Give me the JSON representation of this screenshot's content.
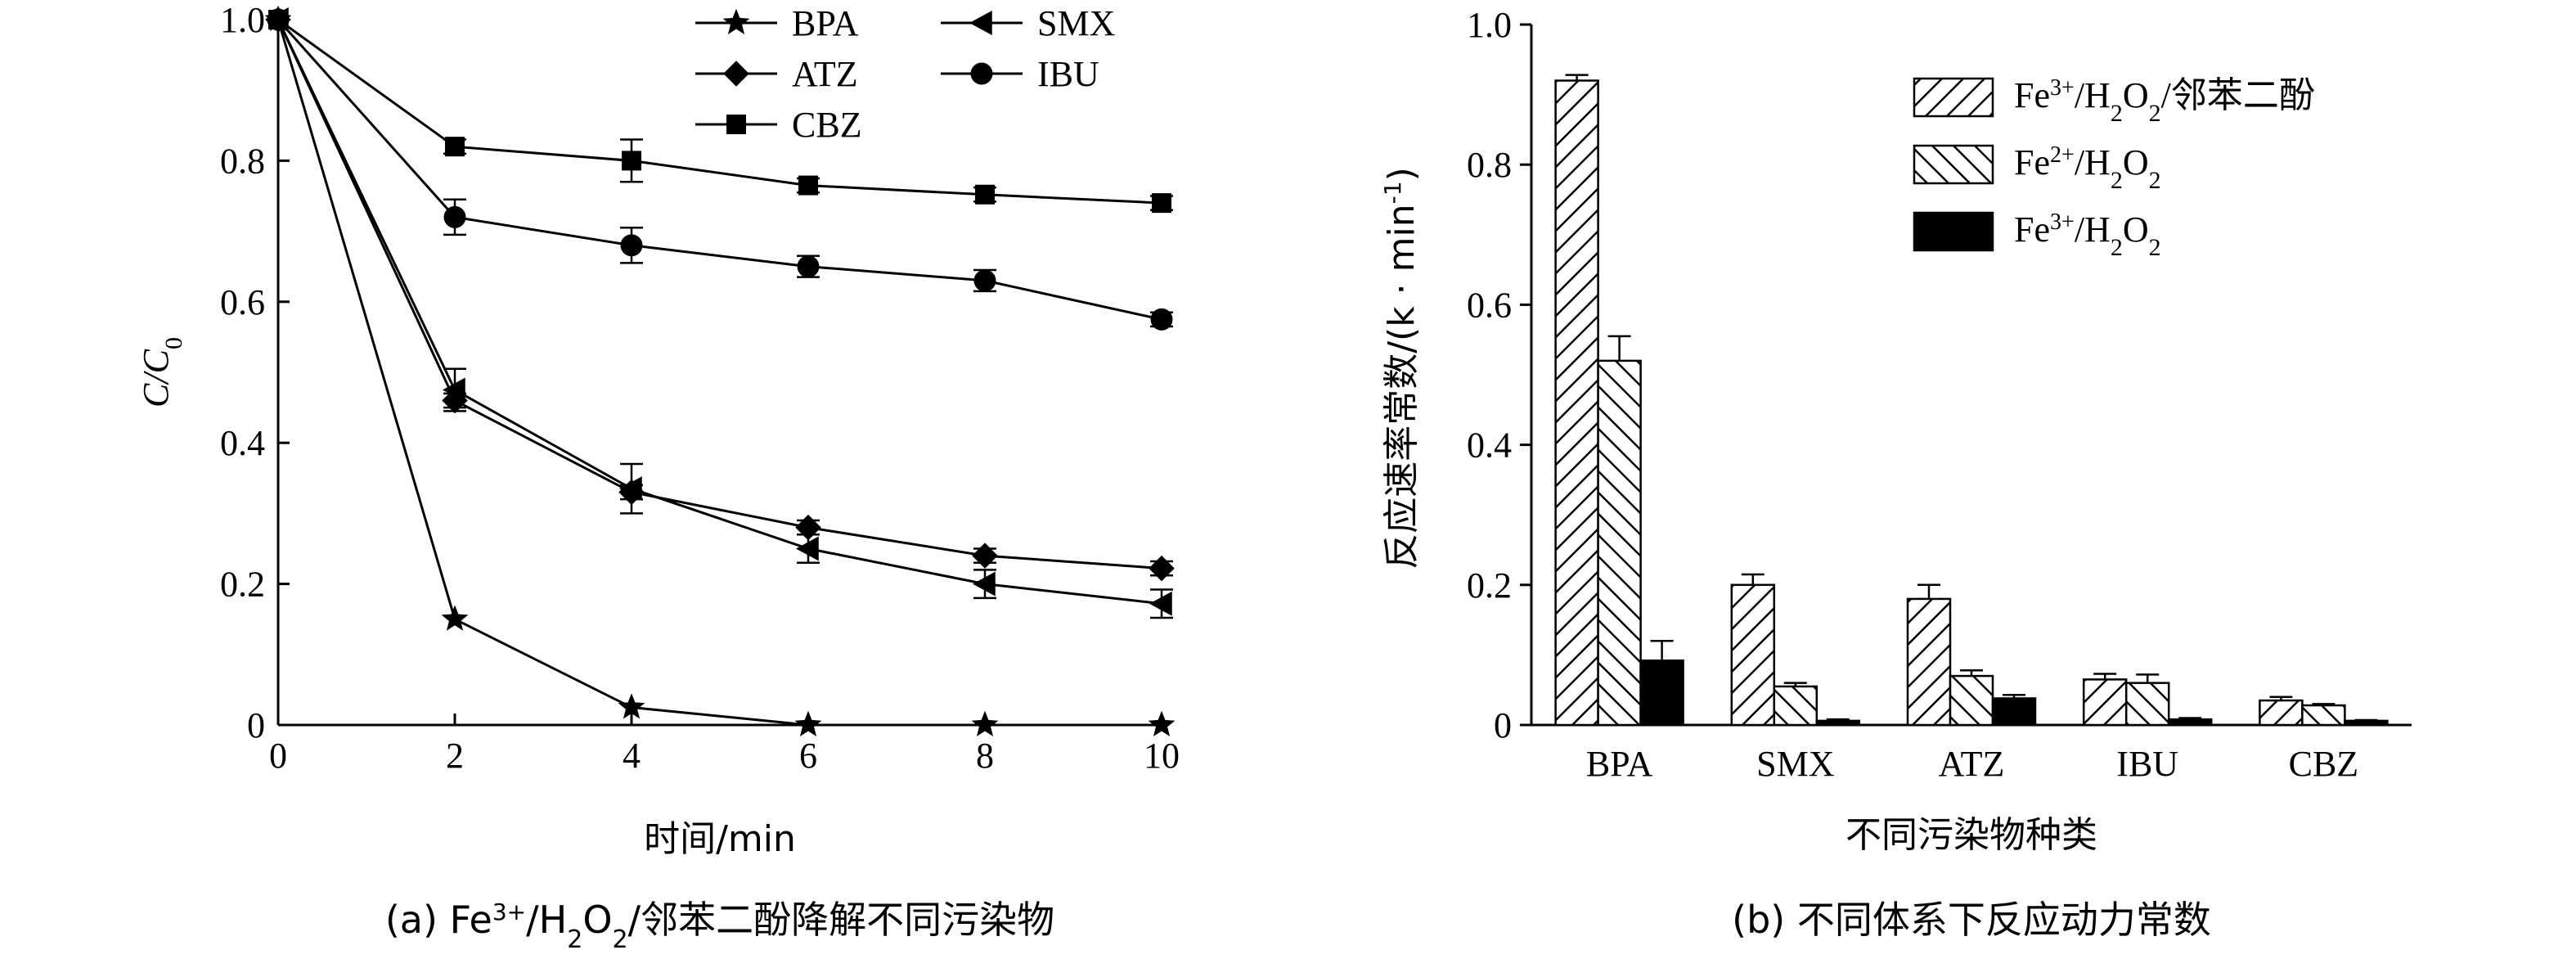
{
  "chart_data": [
    {
      "type": "line",
      "caption": "(a) Fe³⁺/H₂O₂/邻苯二酚降解不同污染物",
      "xlabel": "时间/min",
      "ylabel": "C/C0",
      "xlim": [
        0,
        10
      ],
      "ylim": [
        0,
        1.0
      ],
      "x_ticks": [
        "0",
        "2",
        "4",
        "6",
        "8",
        "10"
      ],
      "y_ticks": [
        "0",
        "0.2",
        "0.4",
        "0.6",
        "0.8",
        "1.0"
      ],
      "x": [
        0,
        2,
        4,
        6,
        8,
        10
      ],
      "legend_position": "top",
      "series": [
        {
          "name": "BPA",
          "marker": "star",
          "values": [
            1.0,
            0.15,
            0.025,
            0.0,
            0.0,
            0.0
          ],
          "errors": [
            0,
            0,
            0,
            0,
            0,
            0
          ]
        },
        {
          "name": "SMX",
          "marker": "triangle-left",
          "values": [
            1.0,
            0.475,
            0.335,
            0.25,
            0.2,
            0.172
          ],
          "errors": [
            0,
            0.03,
            0.035,
            0.02,
            0.02,
            0.02
          ]
        },
        {
          "name": "ATZ",
          "marker": "diamond",
          "values": [
            1.0,
            0.46,
            0.33,
            0.28,
            0.24,
            0.222
          ],
          "errors": [
            0,
            0.01,
            0.01,
            0.01,
            0.01,
            0.01
          ]
        },
        {
          "name": "IBU",
          "marker": "circle",
          "values": [
            1.0,
            0.72,
            0.68,
            0.65,
            0.63,
            0.575
          ],
          "errors": [
            0,
            0.025,
            0.025,
            0.015,
            0.015,
            0.01
          ]
        },
        {
          "name": "CBZ",
          "marker": "square",
          "values": [
            1.0,
            0.82,
            0.8,
            0.765,
            0.752,
            0.74
          ],
          "errors": [
            0,
            0.01,
            0.03,
            0.01,
            0.01,
            0.01
          ]
        }
      ]
    },
    {
      "type": "bar",
      "caption": "(b) 不同体系下反应动力常数",
      "xlabel": "不同污染物种类",
      "ylabel": "反应速率常数/(k · min⁻¹)",
      "ylim": [
        0,
        1.0
      ],
      "y_ticks": [
        "0",
        "0.2",
        "0.4",
        "0.6",
        "0.8",
        "1.0"
      ],
      "categories": [
        "BPA",
        "SMX",
        "ATZ",
        "IBU",
        "CBZ"
      ],
      "legend_position": "top-right",
      "series": [
        {
          "name": "Fe³⁺/H₂O₂/邻苯二酚",
          "pattern": "hatch-forward",
          "values": [
            0.92,
            0.2,
            0.18,
            0.065,
            0.035
          ],
          "errors": [
            0.008,
            0.015,
            0.02,
            0.008,
            0.005
          ]
        },
        {
          "name": "Fe²⁺/H₂O₂",
          "pattern": "hatch-back",
          "values": [
            0.52,
            0.055,
            0.07,
            0.06,
            0.028
          ],
          "errors": [
            0.035,
            0.005,
            0.008,
            0.012,
            0.002
          ]
        },
        {
          "name": "Fe³⁺/H₂O₂",
          "pattern": "solid",
          "values": [
            0.092,
            0.006,
            0.038,
            0.008,
            0.006
          ],
          "errors": [
            0.028,
            0.002,
            0.005,
            0.002,
            0.001
          ]
        }
      ]
    }
  ]
}
